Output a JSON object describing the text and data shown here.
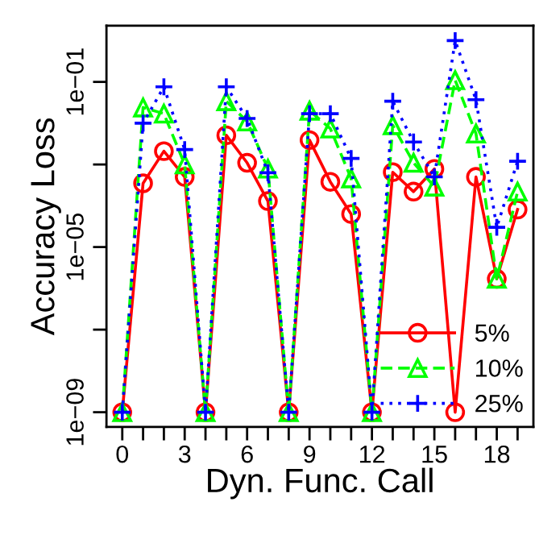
{
  "chart_data": {
    "type": "line",
    "xlabel": "Dyn. Func. Call",
    "ylabel": "Accuracy Loss",
    "x": [
      0,
      1,
      2,
      3,
      4,
      5,
      6,
      7,
      8,
      9,
      10,
      11,
      12,
      13,
      14,
      15,
      16,
      17,
      18,
      19
    ],
    "series": [
      {
        "name": "5%",
        "color": "#ff0000",
        "marker": "circle",
        "line_style": "solid",
        "values": [
          1e-09,
          0.00035,
          0.0021,
          0.0005,
          1e-09,
          0.0051,
          0.0011,
          0.00013,
          1e-09,
          0.0039,
          0.00038,
          6.3e-05,
          1e-09,
          0.00065,
          0.00022,
          0.00078,
          1e-09,
          0.0005,
          1.7e-06,
          8.1e-05
        ]
      },
      {
        "name": "10%",
        "color": "#00ff00",
        "marker": "triangle",
        "line_style": "dashed",
        "values": [
          1e-09,
          0.024,
          0.017,
          0.001,
          1e-09,
          0.034,
          0.011,
          0.00079,
          1e-09,
          0.02,
          0.0074,
          0.00046,
          1e-09,
          0.0089,
          0.0011,
          0.00029,
          0.11,
          0.0056,
          1.7e-06,
          0.00022
        ]
      },
      {
        "name": "25%",
        "color": "#0000ff",
        "marker": "cross",
        "line_style": "dotted",
        "values": [
          1e-09,
          0.01,
          0.076,
          0.0023,
          1e-09,
          0.076,
          0.013,
          0.00063,
          1e-09,
          0.017,
          0.017,
          0.0014,
          1e-09,
          0.034,
          0.0035,
          0.0005,
          1.0,
          0.037,
          3e-05,
          0.0012
        ]
      }
    ],
    "log": "y",
    "ylim": [
      4.4e-10,
      2.3
    ],
    "yticks": [
      {
        "value": 1e-09,
        "label": "1e−09"
      },
      {
        "value": 1e-07,
        "label": null
      },
      {
        "value": 1e-05,
        "label": "1e−05"
      },
      {
        "value": 0.001,
        "label": null
      },
      {
        "value": 0.1,
        "label": "1e−01"
      }
    ],
    "xlim": [
      -0.76,
      19.76
    ],
    "xticks": [
      0,
      {
        "value": 1,
        "label": null
      },
      {
        "value": 2,
        "label": null
      },
      3,
      {
        "value": 4,
        "label": null
      },
      {
        "value": 5,
        "label": null
      },
      6,
      {
        "value": 7,
        "label": null
      },
      {
        "value": 8,
        "label": null
      },
      9,
      {
        "value": 10,
        "label": null
      },
      {
        "value": 11,
        "label": null
      },
      12,
      {
        "value": 13,
        "label": null
      },
      {
        "value": 14,
        "label": null
      },
      15,
      {
        "value": 16,
        "label": null
      },
      {
        "value": 17,
        "label": null
      },
      18,
      {
        "value": 19,
        "label": null
      }
    ],
    "grid": false,
    "legend": "bottom right"
  }
}
